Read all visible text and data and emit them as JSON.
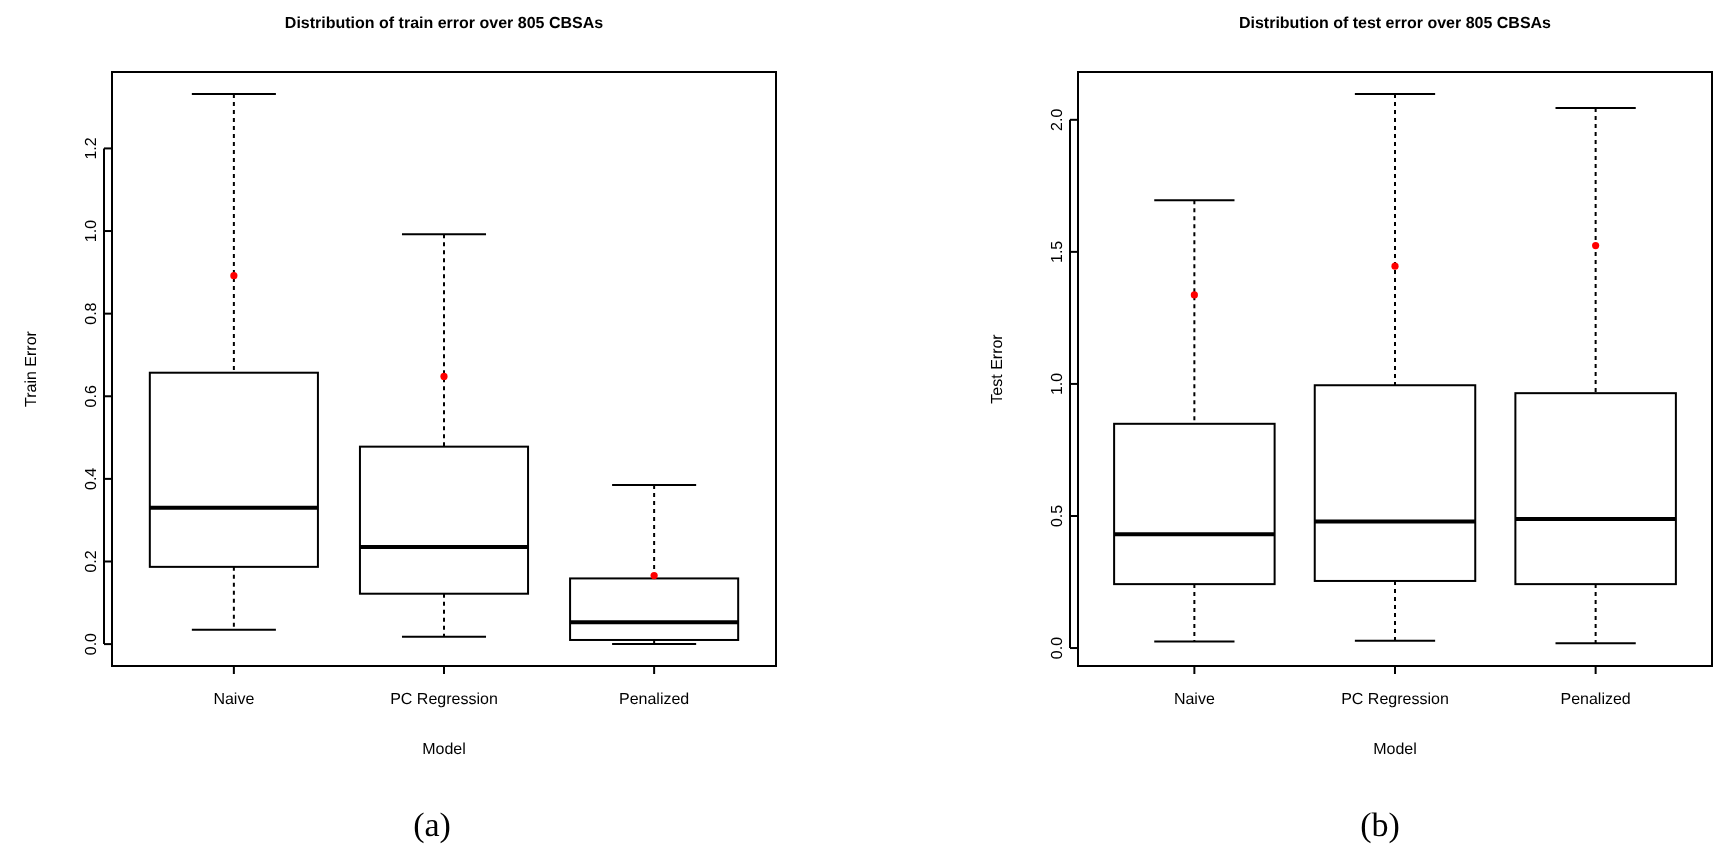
{
  "chart_data": [
    {
      "type": "box",
      "title": "Distribution of train error over 805 CBSAs",
      "xlabel": "Model",
      "ylabel": "Train Error",
      "categories": [
        "Naive",
        "PC Regression",
        "Penalized"
      ],
      "boxes": [
        {
          "low": 0.035,
          "q1": 0.187,
          "median": 0.33,
          "q3": 0.657,
          "high": 1.332,
          "mean": 0.892
        },
        {
          "low": 0.018,
          "q1": 0.122,
          "median": 0.235,
          "q3": 0.478,
          "high": 0.992,
          "mean": 0.648
        },
        {
          "low": 0.0,
          "q1": 0.01,
          "median": 0.053,
          "q3": 0.159,
          "high": 0.385,
          "mean": 0.166
        }
      ],
      "ylim": [
        -0.053,
        1.385
      ],
      "yticks": [
        {
          "value": 0,
          "label": "0.0"
        },
        0.2,
        0.4,
        0.6,
        0.8,
        {
          "value": 1,
          "label": "1.0"
        },
        1.2
      ],
      "grid": false,
      "annotations": [
        "(a)"
      ]
    },
    {
      "type": "box",
      "title": "Distribution of test error over 805 CBSAs",
      "xlabel": "Model",
      "ylabel": "Test Error",
      "categories": [
        "Naive",
        "PC Regression",
        "Penalized"
      ],
      "boxes": [
        {
          "low": 0.025,
          "q1": 0.242,
          "median": 0.431,
          "q3": 0.849,
          "high": 1.695,
          "mean": 1.337
        },
        {
          "low": 0.028,
          "q1": 0.254,
          "median": 0.479,
          "q3": 0.995,
          "high": 2.098,
          "mean": 1.446
        },
        {
          "low": 0.018,
          "q1": 0.242,
          "median": 0.489,
          "q3": 0.965,
          "high": 2.045,
          "mean": 1.524
        }
      ],
      "ylim": [
        -0.068,
        2.181
      ],
      "yticks": [
        {
          "value": 0,
          "label": "0.0"
        },
        0.5,
        {
          "value": 1,
          "label": "1.0"
        },
        1.5,
        {
          "value": 2,
          "label": "2.0"
        }
      ],
      "grid": false,
      "annotations": [
        "(b)"
      ]
    }
  ]
}
